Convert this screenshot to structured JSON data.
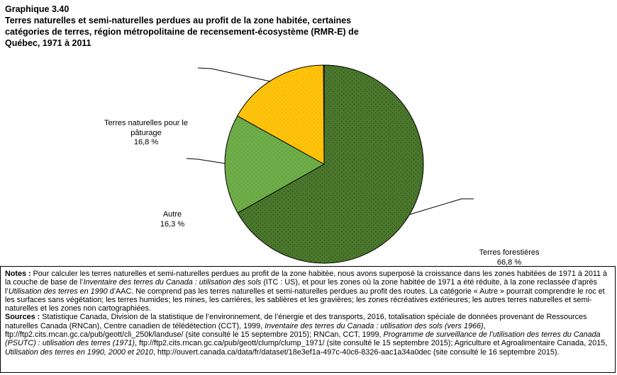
{
  "header": {
    "figure_label": "Graphique 3.40",
    "title_lines": [
      "Terres naturelles et semi-naturelles perdues au profit de la zone habitée, certaines",
      "catégories de terres, région métropolitaine de recensement-écosystème (RMR-E) de",
      "Québec, 1971 à 2011"
    ]
  },
  "chart_data": {
    "type": "pie",
    "title": "Terres naturelles et semi-naturelles perdues au profit de la zone habitée, certaines catégories de terres, région métropolitaine de recensement-écosystème (RMR-E) de Québec, 1971 à 2011",
    "unit": "%",
    "direction": "clockwise",
    "start_angle_deg": 0,
    "labels_position": "outside-with-leader-lines",
    "slices": [
      {
        "label": "Terres forestières",
        "value": 66.8,
        "pct_label": "66,8 %",
        "display_label_lines": [
          "Terres forestières",
          "66,8 %"
        ],
        "color": "#4A772C",
        "dot_color": "#2C4D18"
      },
      {
        "label": "Autre",
        "value": 16.3,
        "pct_label": "16,3 %",
        "display_label_lines": [
          "Autre",
          "16,3 %"
        ],
        "color": "#6FAD49",
        "dot_color": "#5A9638"
      },
      {
        "label": "Terres naturelles pour le pâturage",
        "value": 16.8,
        "pct_label": "16,8 %",
        "display_label_lines": [
          "Terres naturelles pour le",
          "pâturage",
          "16,8 %"
        ],
        "color": "#FFC30B",
        "dot_color": "#EAAC00"
      }
    ]
  },
  "notes": {
    "segments": [
      {
        "text": "Notes :",
        "style": "bold"
      },
      {
        "text": " Pour calculer les terres naturelles et semi-naturelles perdues au profit de la zone habitée, nous avons superposé la croissance dans les zones habitées de 1971 à 2011 à la couche de base de l’",
        "style": ""
      },
      {
        "text": "Inventaire des terres du Canada : utilisation des sols",
        "style": "italic"
      },
      {
        "text": " (ITC : US), et pour les zones où la zone habitée de 1971 a été réduite, à la zone reclassée d’après l’",
        "style": ""
      },
      {
        "text": "Utilisation des terres en 1990",
        "style": "italic"
      },
      {
        "text": " d’AAC. Ne comprend pas les terres naturelles et semi-naturelles perdues au profit des routes. La catégorie « Autre » pourrait comprendre le roc et les surfaces sans végétation; les terres humides; les mines, les carrières, les sablières et les gravières; les zones récréatives extérieures; les autres terres naturelles et semi-naturelles et les zones non cartographiées.",
        "style": ""
      }
    ]
  },
  "sources": {
    "segments": [
      {
        "text": "Sources :",
        "style": "bold"
      },
      {
        "text": " Statistique Canada, Division de la statistique de l’environnement, de l’énergie et des transports, 2016, totalisation spéciale de données provenant de Ressources naturelles Canada (RNCan), Centre canadien de télédétection (CCT), 1999, ",
        "style": ""
      },
      {
        "text": "Inventaire des terres du Canada : utilisation des sols (vers 1966)",
        "style": "italic"
      },
      {
        "text": ", ftp://ftp2.cits.rncan.gc.ca/pub/geott/cli_250k/landuse/ (site consulté le 15 septembre 2015); RNCan, CCT, 1999, ",
        "style": ""
      },
      {
        "text": "Programme de surveillance de l’utilisation des terres du Canada (PSUTC) : utilisation des terres (1971)",
        "style": "italic"
      },
      {
        "text": ", ftp://ftp2.cits.rncan.gc.ca/pub/geott/clump/clump_1971/ (site consulté le 15 septembre 2015); Agriculture et Agroalimentaire Canada, 2015, ",
        "style": ""
      },
      {
        "text": "Utilisation des terres en 1990, 2000 et 2010",
        "style": "italic"
      },
      {
        "text": ", http://ouvert.canada.ca/data/fr/dataset/18e3ef1a-497c-40c6-8326-aac1a34a0dec (site consulté le 16 septembre 2015).",
        "style": ""
      }
    ]
  }
}
